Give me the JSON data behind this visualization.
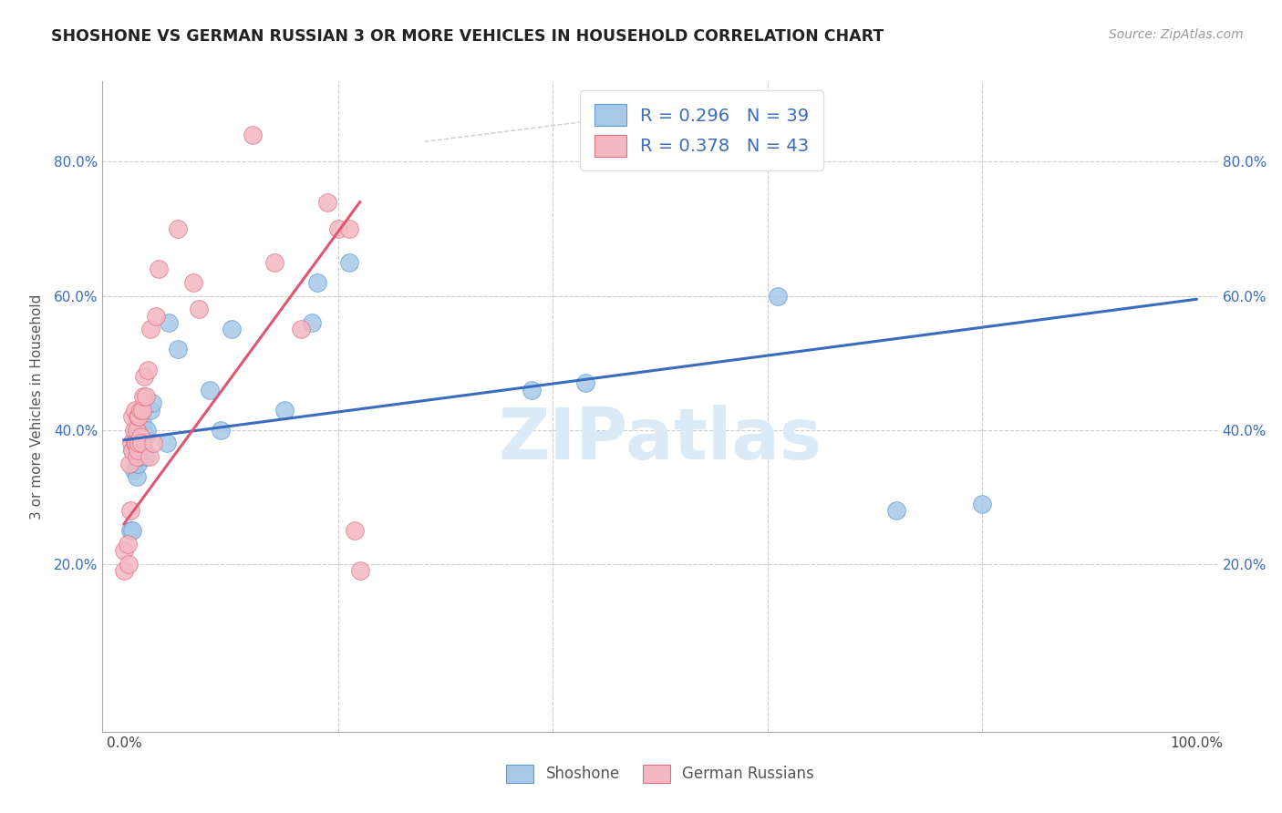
{
  "title": "SHOSHONE VS GERMAN RUSSIAN 3 OR MORE VEHICLES IN HOUSEHOLD CORRELATION CHART",
  "source": "Source: ZipAtlas.com",
  "ylabel": "3 or more Vehicles in Household",
  "shoshone_color": "#a8c8e8",
  "german_russian_color": "#f4b8c1",
  "shoshone_edge": "#5b9bd5",
  "german_russian_edge": "#e07080",
  "trendline_blue": "#3a6bbf",
  "trendline_pink": "#e05570",
  "watermark_color": "#daeaf7",
  "legend1_r": "0.296",
  "legend1_n": "39",
  "legend2_r": "0.378",
  "legend2_n": "43",
  "shoshone_x": [
    0.6,
    0.8,
    0.8,
    0.9,
    1.0,
    1.0,
    1.2,
    1.2,
    1.3,
    1.3,
    1.4,
    1.5,
    1.5,
    1.6,
    1.6,
    1.7,
    1.8,
    1.8,
    1.9,
    2.0,
    2.0,
    2.1,
    2.5,
    2.6,
    4.0,
    4.2,
    5.0,
    8.0,
    9.0,
    10.0,
    15.0,
    17.5,
    18.0,
    21.0,
    38.0,
    43.0,
    61.0,
    72.0,
    80.0
  ],
  "shoshone_y": [
    25.0,
    37.0,
    25.0,
    34.0,
    38.0,
    39.0,
    33.0,
    40.0,
    35.0,
    37.0,
    38.0,
    36.0,
    37.0,
    39.0,
    38.0,
    41.0,
    39.0,
    40.0,
    37.0,
    36.0,
    39.0,
    40.0,
    43.0,
    44.0,
    38.0,
    56.0,
    52.0,
    46.0,
    40.0,
    55.0,
    43.0,
    56.0,
    62.0,
    65.0,
    46.0,
    47.0,
    60.0,
    28.0,
    29.0
  ],
  "german_russian_x": [
    0.0,
    0.0,
    0.3,
    0.4,
    0.5,
    0.6,
    0.7,
    0.8,
    0.8,
    0.9,
    1.0,
    1.0,
    1.1,
    1.2,
    1.2,
    1.3,
    1.3,
    1.4,
    1.4,
    1.5,
    1.5,
    1.6,
    1.7,
    1.8,
    1.9,
    2.0,
    2.2,
    2.4,
    2.5,
    2.7,
    3.0,
    3.2,
    5.0,
    6.5,
    7.0,
    12.0,
    14.0,
    16.5,
    19.0,
    20.0,
    21.0,
    21.5,
    22.0
  ],
  "german_russian_y": [
    22.0,
    19.0,
    23.0,
    20.0,
    35.0,
    28.0,
    38.0,
    42.0,
    37.0,
    40.0,
    43.0,
    38.0,
    38.0,
    36.0,
    40.0,
    37.0,
    42.0,
    38.0,
    42.0,
    43.0,
    39.0,
    38.0,
    43.0,
    45.0,
    48.0,
    45.0,
    49.0,
    36.0,
    55.0,
    38.0,
    57.0,
    64.0,
    70.0,
    62.0,
    58.0,
    84.0,
    65.0,
    55.0,
    74.0,
    70.0,
    70.0,
    25.0,
    19.0
  ],
  "blue_trend": [
    0.0,
    100.0,
    38.5,
    59.5
  ],
  "pink_trend": [
    0.0,
    22.0,
    26.0,
    74.0
  ],
  "diagonal": [
    28.0,
    43.0,
    83.0,
    86.0
  ],
  "xlim": [
    -2.0,
    102.0
  ],
  "ylim": [
    -5.0,
    92.0
  ],
  "yticks": [
    0,
    20,
    40,
    60,
    80
  ],
  "xticks": [
    0,
    20,
    40,
    60,
    80,
    100
  ],
  "xlabel_labels": [
    "0.0%",
    "",
    "",
    "",
    "",
    "100.0%"
  ],
  "ylabel_labels": [
    "",
    "20.0%",
    "40.0%",
    "60.0%",
    "80.0%"
  ]
}
